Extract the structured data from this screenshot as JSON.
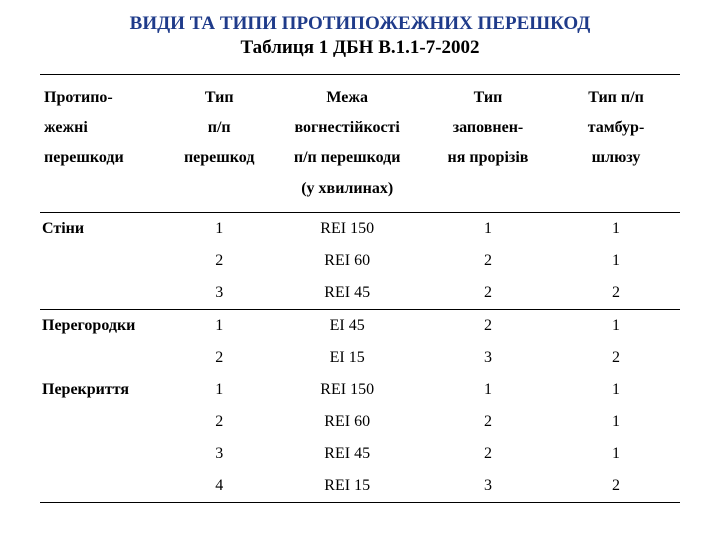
{
  "title": "ВИДИ ТА ТИПИ ПРОТИПОЖЕЖНИХ ПЕРЕШКОД",
  "subtitle": "Таблиця 1 ДБН В.1.1-7-2002",
  "colors": {
    "title": "#1f3b8a",
    "text": "#000000",
    "background": "#ffffff",
    "border": "#000000"
  },
  "typography": {
    "title_fontsize_pt": 14,
    "body_fontsize_pt": 12,
    "font_family": "Times New Roman"
  },
  "table": {
    "type": "table",
    "columns": [
      {
        "lines": [
          "Протипо-",
          "жежні",
          "перешкоди"
        ],
        "align": "left",
        "width_pct": 20
      },
      {
        "lines": [
          "Тип",
          "п/п",
          "перешкод"
        ],
        "align": "center",
        "width_pct": 16
      },
      {
        "lines": [
          "Межа",
          "вогнестійкості",
          "п/п перешкоди",
          "(у хвилинах)"
        ],
        "align": "center",
        "width_pct": 24
      },
      {
        "lines": [
          "Тип",
          "заповнен-",
          "ня прорізів"
        ],
        "align": "center",
        "width_pct": 20
      },
      {
        "lines": [
          "Тип п/п",
          "тамбур-",
          "шлюзу"
        ],
        "align": "center",
        "width_pct": 20
      }
    ],
    "groups": [
      {
        "label": "Стіни",
        "separator_before": true,
        "rows": [
          [
            "1",
            "REI 150",
            "1",
            "1"
          ],
          [
            "2",
            "REI 60",
            "2",
            "1"
          ],
          [
            "3",
            "REI 45",
            "2",
            "2"
          ]
        ]
      },
      {
        "label": "Перегородки",
        "separator_before": true,
        "rows": [
          [
            "1",
            "EI 45",
            "2",
            "1"
          ],
          [
            "2",
            "EI 15",
            "3",
            "2"
          ]
        ]
      },
      {
        "label": "Перекриття",
        "separator_before": false,
        "rows": [
          [
            "1",
            "REI 150",
            "1",
            "1"
          ],
          [
            "2",
            "REI 60",
            "2",
            "1"
          ],
          [
            "3",
            "REI 45",
            "2",
            "1"
          ],
          [
            "4",
            "REI 15",
            "3",
            "2"
          ]
        ]
      }
    ]
  }
}
